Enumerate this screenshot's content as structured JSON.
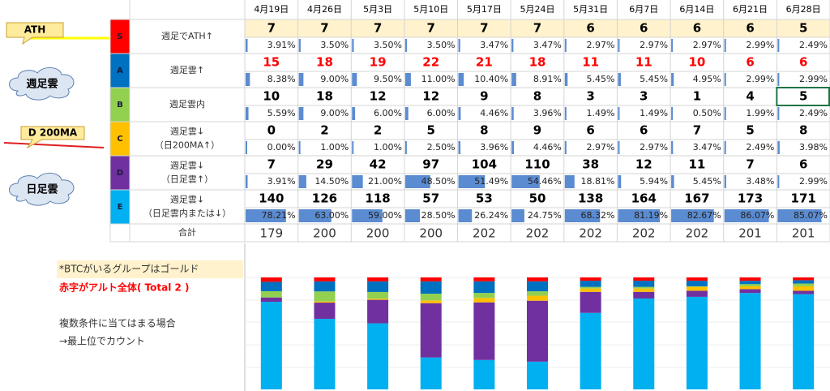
{
  "table": {
    "dates": [
      "4月19日",
      "4月26日",
      "5月3日",
      "5月10日",
      "5月17日",
      "5月24日",
      "5月31日",
      "6月7日",
      "6月14日",
      "6月21日",
      "6月28日"
    ],
    "groups": [
      {
        "letter": "S",
        "color": "#ff0000",
        "count_color": "#000000",
        "label": [
          "週足でATH↑"
        ],
        "counts": [
          7,
          7,
          7,
          7,
          7,
          7,
          6,
          6,
          6,
          6,
          5
        ],
        "pcts": [
          3.91,
          3.5,
          3.5,
          3.5,
          3.47,
          3.47,
          2.97,
          2.97,
          2.97,
          2.99,
          2.49
        ],
        "pct_labels": [
          "3.91%",
          "3.50%",
          "3.50%",
          "3.50%",
          "3.47%",
          "3.47%",
          "2.97%",
          "2.97%",
          "2.97%",
          "2.99%",
          "2.49%"
        ]
      },
      {
        "letter": "A",
        "color": "#0070c0",
        "count_color": "#ff0000",
        "label": [
          "週足雲↑"
        ],
        "counts": [
          15,
          18,
          19,
          22,
          21,
          18,
          11,
          11,
          10,
          6,
          6
        ],
        "pcts": [
          8.38,
          9.0,
          9.5,
          11.0,
          10.4,
          8.91,
          5.45,
          5.45,
          4.95,
          2.99,
          2.99
        ],
        "pct_labels": [
          "8.38%",
          "9.00%",
          "9.50%",
          "11.00%",
          "10.40%",
          "8.91%",
          "5.45%",
          "5.45%",
          "4.95%",
          "2.99%",
          "2.99%"
        ]
      },
      {
        "letter": "B",
        "color": "#92d050",
        "count_color": "#000000",
        "label": [
          "週足雲内"
        ],
        "counts": [
          10,
          18,
          12,
          12,
          9,
          8,
          3,
          3,
          1,
          4,
          5
        ],
        "pcts": [
          5.59,
          9.0,
          6.0,
          6.0,
          4.46,
          3.96,
          1.49,
          1.49,
          0.5,
          1.99,
          2.49
        ],
        "pct_labels": [
          "5.59%",
          "9.00%",
          "6.00%",
          "6.00%",
          "4.46%",
          "3.96%",
          "1.49%",
          "1.49%",
          "0.50%",
          "1.99%",
          "2.49%"
        ]
      },
      {
        "letter": "C",
        "color": "#ffc000",
        "count_color": "#000000",
        "label": [
          "週足雲↓",
          "（日200MA↑）"
        ],
        "counts": [
          0,
          2,
          2,
          5,
          8,
          9,
          6,
          6,
          7,
          5,
          8
        ],
        "pcts": [
          0.0,
          1.0,
          1.0,
          2.5,
          3.96,
          4.46,
          2.97,
          2.97,
          3.47,
          2.49,
          3.98
        ],
        "pct_labels": [
          "0.00%",
          "1.00%",
          "1.00%",
          "2.50%",
          "3.96%",
          "4.46%",
          "2.97%",
          "2.97%",
          "3.47%",
          "2.49%",
          "3.98%"
        ]
      },
      {
        "letter": "D",
        "color": "#7030a0",
        "count_color": "#000000",
        "label": [
          "週足雲↓",
          "（日足雲↑）"
        ],
        "counts": [
          7,
          29,
          42,
          97,
          104,
          110,
          38,
          12,
          11,
          7,
          6
        ],
        "pcts": [
          3.91,
          14.5,
          21.0,
          48.5,
          51.49,
          54.46,
          18.81,
          5.94,
          5.45,
          3.48,
          2.99
        ],
        "pct_labels": [
          "3.91%",
          "14.50%",
          "21.00%",
          "48.50%",
          "51.49%",
          "54.46%",
          "18.81%",
          "5.94%",
          "5.45%",
          "3.48%",
          "2.99%"
        ]
      },
      {
        "letter": "E",
        "color": "#00b0f0",
        "count_color": "#000000",
        "label": [
          "週足雲↓",
          "（日足雲内または↓）"
        ],
        "counts": [
          140,
          126,
          118,
          57,
          53,
          50,
          138,
          164,
          167,
          173,
          171
        ],
        "pcts": [
          78.21,
          63.0,
          59.0,
          28.5,
          26.24,
          24.75,
          68.32,
          81.19,
          82.67,
          86.07,
          85.07
        ],
        "pct_labels": [
          "78.21%",
          "63.00%",
          "59.00%",
          "28.50%",
          "26.24%",
          "24.75%",
          "68.32%",
          "81.19%",
          "82.67%",
          "86.07%",
          "85.07%"
        ]
      }
    ],
    "total_label": "合計",
    "totals": [
      179,
      200,
      200,
      200,
      202,
      202,
      202,
      202,
      202,
      201,
      201
    ]
  },
  "callouts": {
    "ath": "ATH",
    "weekly_cloud": "週足雲",
    "d200": "D 200MA",
    "daily_cloud": "日足雲"
  },
  "notes": [
    "*BTCがいるグループはゴールド",
    "赤字がアルト全体( Total 2 )",
    "複数条件に当てはまる場合",
    "→最上位でカウント"
  ]
}
